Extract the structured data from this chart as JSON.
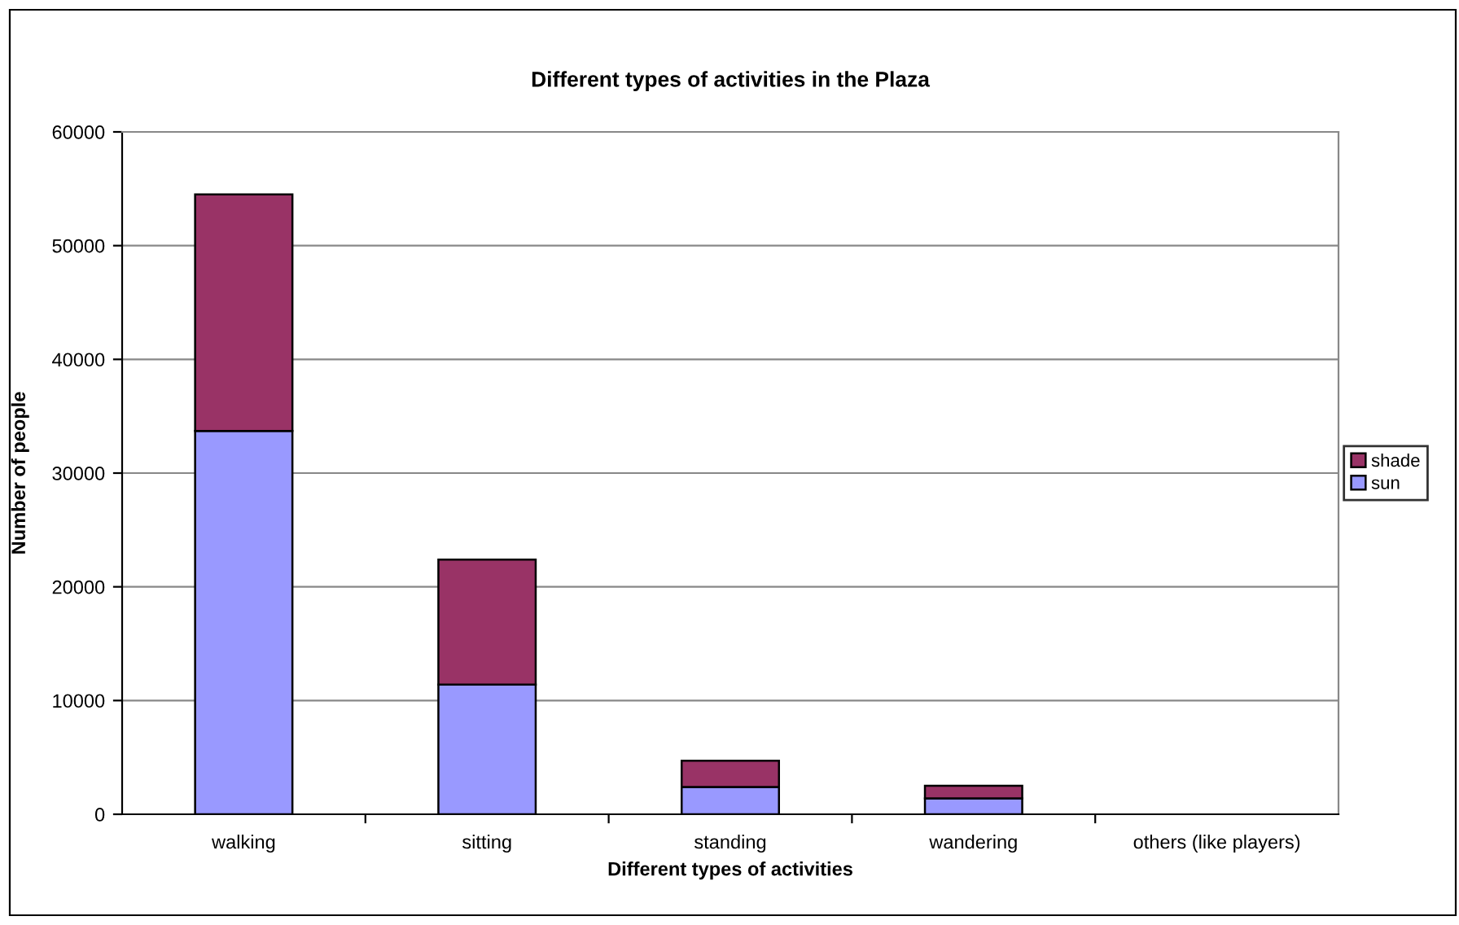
{
  "chart_data": {
    "type": "bar",
    "title": "Different types of activities in the Plaza",
    "xlabel": "Different types of activities",
    "ylabel": "Number of people",
    "categories": [
      "walking",
      "sitting",
      "standing",
      "wandering",
      "others (like players)"
    ],
    "stacked": true,
    "series": [
      {
        "name": "sun",
        "color": "#9999ff",
        "values": [
          33700,
          11400,
          2400,
          1400,
          null
        ]
      },
      {
        "name": "shade",
        "color": "#993366",
        "values": [
          20800,
          11000,
          2300,
          1100,
          null
        ]
      }
    ],
    "ylim": [
      0,
      60000
    ],
    "yticks": [
      0,
      10000,
      20000,
      30000,
      40000,
      50000,
      60000
    ],
    "grid": "y",
    "legend": "right"
  }
}
